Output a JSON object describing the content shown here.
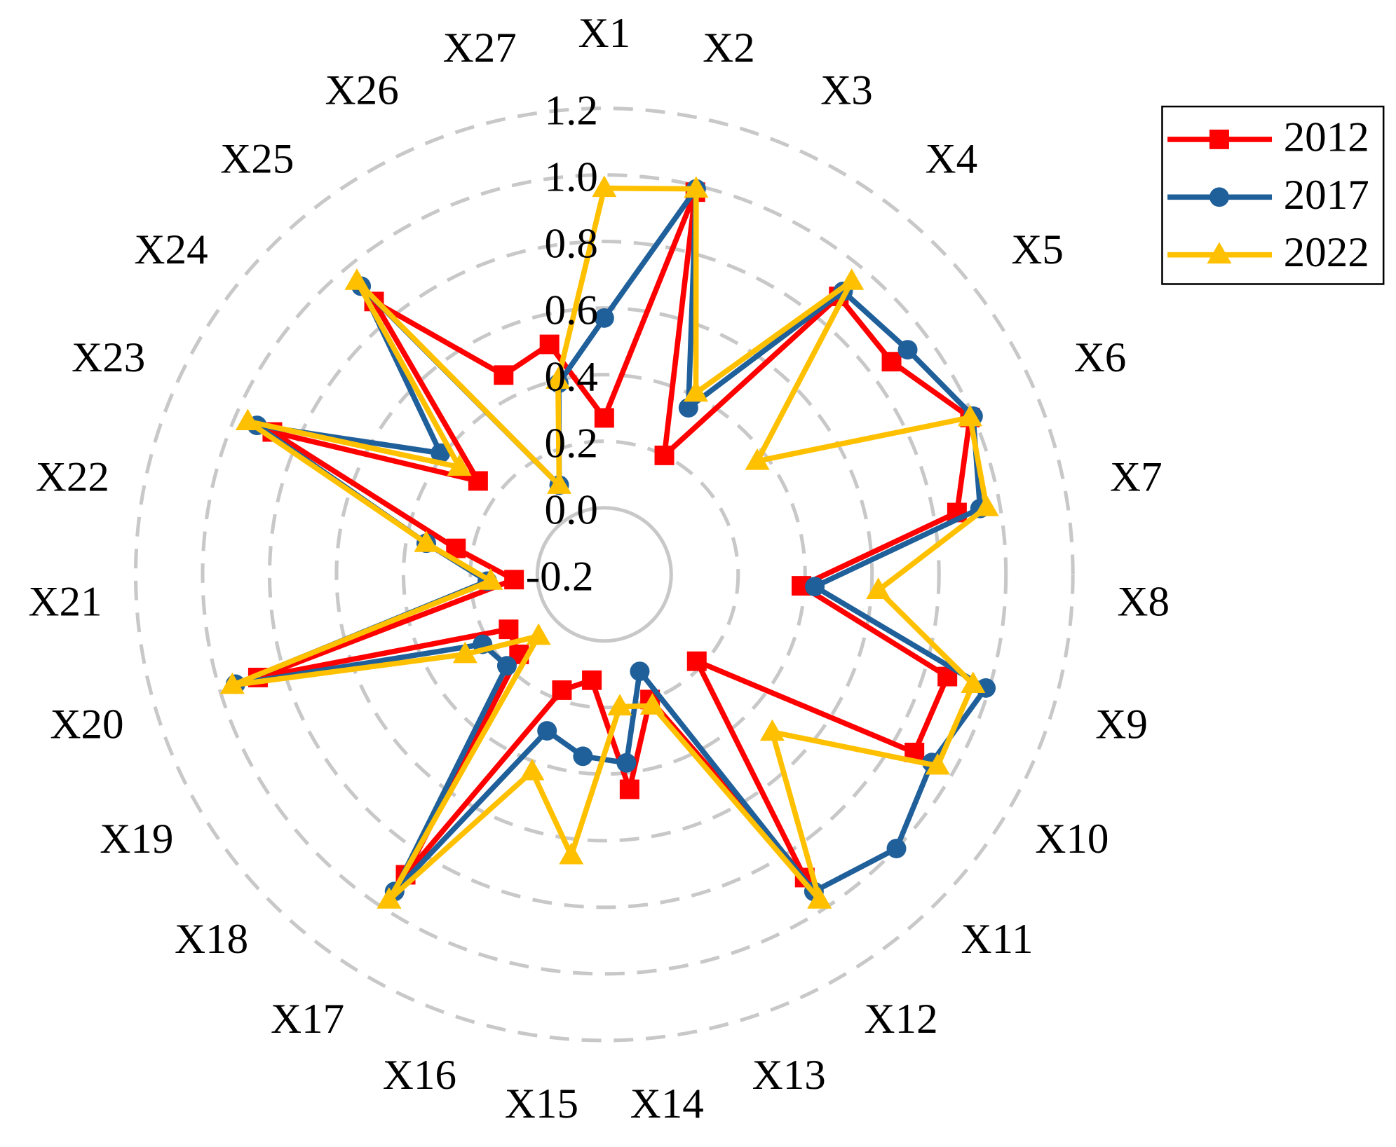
{
  "chart_data": {
    "type": "radar",
    "categories": [
      "X1",
      "X2",
      "X3",
      "X4",
      "X5",
      "X6",
      "X7",
      "X8",
      "X9",
      "X10",
      "X11",
      "X12",
      "X13",
      "X14",
      "X15",
      "X16",
      "X17",
      "X18",
      "X19",
      "X20",
      "X21",
      "X22",
      "X23",
      "X24",
      "X25",
      "X26",
      "X27"
    ],
    "ylim": [
      -0.2,
      1.2
    ],
    "yticks": [
      -0.2,
      0.2,
      0.4,
      0.6,
      0.8,
      {
        "value": 1,
        "label": "1.0"
      },
      1.2,
      {
        "value": 0,
        "label": "0.0"
      }
    ],
    "grid": true,
    "legend": "upper-right",
    "series": [
      {
        "name": "2012",
        "color": "#ff0000",
        "marker": "square",
        "values": [
          0.27,
          0.98,
          0.2,
          0.89,
          0.87,
          0.99,
          0.87,
          0.39,
          0.87,
          0.87,
          0.18,
          0.89,
          0.2,
          0.45,
          0.12,
          0.17,
          0.88,
          0.15,
          0.13,
          0.88,
          0.07,
          0.25,
          0.88,
          0.27,
          0.87,
          0.47,
          0.51
        ]
      },
      {
        "name": "2017",
        "color": "#1f5f9a",
        "marker": "circle",
        "values": [
          0.57,
          0.99,
          0.36,
          0.91,
          0.93,
          1.0,
          0.94,
          0.43,
          0.99,
          0.93,
          1.0,
          0.94,
          0.11,
          0.37,
          0.35,
          0.3,
          0.94,
          0.2,
          0.22,
          0.95,
          0.15,
          0.34,
          0.93,
          0.41,
          0.93,
          0.1,
          0.39
        ]
      },
      {
        "name": "2022",
        "color": "#ffc000",
        "marker": "triangle",
        "values": [
          0.96,
          0.99,
          0.41,
          0.95,
          0.37,
          0.99,
          0.96,
          0.62,
          0.95,
          0.95,
          0.49,
          0.97,
          0.22,
          0.2,
          0.65,
          0.43,
          0.97,
          0.07,
          0.28,
          0.96,
          0.14,
          0.34,
          0.96,
          0.34,
          0.95,
          0.1,
          0.4
        ]
      }
    ]
  }
}
